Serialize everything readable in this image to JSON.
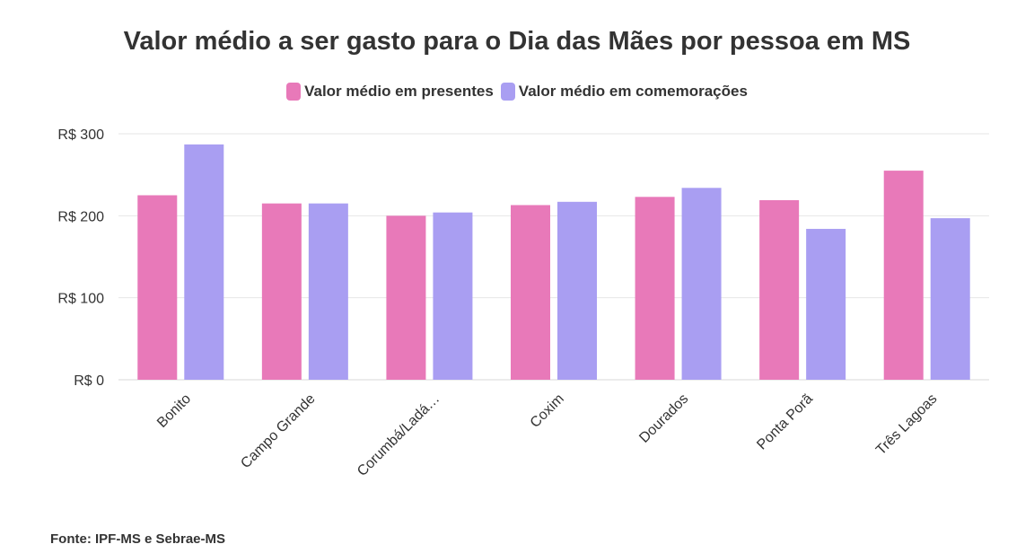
{
  "chart_data": {
    "type": "bar",
    "title": "Valor médio a ser gasto para o Dia das Mães por pessoa em MS",
    "categories": [
      "Bonito",
      "Campo Grande",
      "Corumbá/Ladá…",
      "Coxim",
      "Dourados",
      "Ponta Porã",
      "Três Lagoas"
    ],
    "series": [
      {
        "name": "Valor médio em presentes",
        "color": "#e879b9",
        "values": [
          225,
          215,
          200,
          213,
          223,
          219,
          255
        ]
      },
      {
        "name": "Valor médio em comemorações",
        "color": "#a99ef2",
        "values": [
          287,
          215,
          204,
          217,
          234,
          184,
          197
        ]
      }
    ],
    "ylim": [
      0,
      300
    ],
    "yticks": [
      0,
      100,
      200,
      300
    ],
    "ytick_labels": [
      "R$ 0",
      "R$ 100",
      "R$ 200",
      "R$ 300"
    ],
    "xlabel": "",
    "ylabel": "",
    "grid": true,
    "legend_position": "top-center"
  },
  "source": "Fonte: IPF-MS e Sebrae-MS"
}
